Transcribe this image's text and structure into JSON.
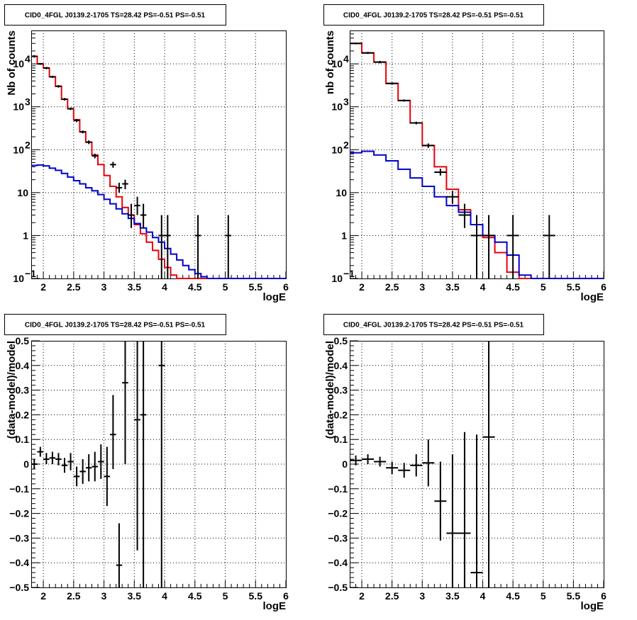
{
  "chart_data": [
    {
      "type": "histogram",
      "title": "CID0_4FGL J0139.2-1705 TS=28.42 PS=-0.51 PS=-0.51",
      "xlabel": "logE",
      "ylabel": "Nb of counts",
      "xlim": [
        1.8,
        6.0
      ],
      "ylim": [
        0.1,
        60000
      ],
      "yscale": "log",
      "grid": true,
      "xticks": [
        "2",
        "2.5",
        "3",
        "3.5",
        "4",
        "4.5",
        "5",
        "5.5",
        "6"
      ],
      "yticks": [
        {
          "v": 0.1,
          "label": "10",
          "exp": "−1"
        },
        {
          "v": 1,
          "label": "1",
          "exp": ""
        },
        {
          "v": 10,
          "label": "10",
          "exp": ""
        },
        {
          "v": 100,
          "label": "10",
          "exp": "2"
        },
        {
          "v": 1000,
          "label": "10",
          "exp": "3"
        },
        {
          "v": 10000,
          "label": "10",
          "exp": "4"
        }
      ],
      "bin_width": 0.1,
      "bins_start": 1.8,
      "series": [
        {
          "color": "#e8000b",
          "role": "total-model",
          "values": [
            15000,
            10000,
            8000,
            5000,
            3000,
            1500,
            900,
            500,
            260,
            150,
            75,
            45,
            25,
            14,
            8,
            4.5,
            3,
            1.8,
            1.1,
            0.7,
            0.45,
            0.28,
            0.18,
            0.12,
            0.1,
            0.1,
            0.1,
            0.1,
            0.1,
            0.1,
            0.1,
            0.1,
            0.1,
            0.1,
            0.1,
            0.1,
            0.1,
            0.1,
            0.1,
            0.1,
            0.1,
            0.1
          ]
        },
        {
          "color": "#0000cc",
          "role": "background-model",
          "values": [
            43,
            44,
            42,
            37,
            33,
            28,
            23,
            19,
            16,
            13,
            11,
            9,
            7,
            5.5,
            4.2,
            3.2,
            2.5,
            1.9,
            1.5,
            1.2,
            0.9,
            0.7,
            0.5,
            0.37,
            0.27,
            0.2,
            0.16,
            0.13,
            0.11,
            0.1,
            0.1,
            0.1,
            0.1,
            0.1,
            0.1,
            0.1,
            0.1,
            0.1,
            0.1,
            0.1,
            0.1,
            0.1
          ]
        }
      ],
      "points": [
        {
          "x": 1.85,
          "y": 15000,
          "lo": 14000,
          "hi": 16000
        },
        {
          "x": 1.95,
          "y": 10000,
          "lo": 9500,
          "hi": 10500
        },
        {
          "x": 2.05,
          "y": 8000,
          "lo": 7500,
          "hi": 8500
        },
        {
          "x": 2.15,
          "y": 5000,
          "lo": 4700,
          "hi": 5300
        },
        {
          "x": 2.25,
          "y": 3000,
          "lo": 2800,
          "hi": 3200
        },
        {
          "x": 2.35,
          "y": 1500,
          "lo": 1400,
          "hi": 1600
        },
        {
          "x": 2.45,
          "y": 900,
          "lo": 840,
          "hi": 960
        },
        {
          "x": 2.55,
          "y": 480,
          "lo": 440,
          "hi": 520
        },
        {
          "x": 2.65,
          "y": 260,
          "lo": 240,
          "hi": 280
        },
        {
          "x": 2.75,
          "y": 150,
          "lo": 135,
          "hi": 165
        },
        {
          "x": 2.85,
          "y": 72,
          "lo": 63,
          "hi": 81
        },
        {
          "x": 3.15,
          "y": 45,
          "lo": 38,
          "hi": 52
        },
        {
          "x": 3.25,
          "y": 13,
          "lo": 10,
          "hi": 17
        },
        {
          "x": 3.35,
          "y": 16,
          "lo": 12,
          "hi": 20
        },
        {
          "x": 3.45,
          "y": 3,
          "lo": 1.5,
          "hi": 5.5
        },
        {
          "x": 3.55,
          "y": 5,
          "lo": 3,
          "hi": 8
        },
        {
          "x": 3.65,
          "y": 3,
          "lo": 1.5,
          "hi": 5.5
        },
        {
          "x": 3.95,
          "y": 1,
          "lo": 0.1,
          "hi": 3
        },
        {
          "x": 4.05,
          "y": 1,
          "lo": 0.1,
          "hi": 3
        },
        {
          "x": 4.55,
          "y": 1,
          "lo": 0.1,
          "hi": 3
        },
        {
          "x": 5.05,
          "y": 1,
          "lo": 0.1,
          "hi": 3
        }
      ]
    },
    {
      "type": "histogram",
      "title": "CID0_4FGL J0139.2-1705 TS=28.42 PS=-0.51 PS=-0.51",
      "xlabel": "logE",
      "ylabel": "nb of counts",
      "xlim": [
        1.8,
        6.0
      ],
      "ylim": [
        0.1,
        60000
      ],
      "yscale": "log",
      "grid": true,
      "xticks": [
        "2",
        "2.5",
        "3",
        "3.5",
        "4",
        "4.5",
        "5",
        "5.5",
        "6"
      ],
      "yticks": [
        {
          "v": 0.1,
          "label": "10",
          "exp": "−1"
        },
        {
          "v": 1,
          "label": "1",
          "exp": ""
        },
        {
          "v": 10,
          "label": "10",
          "exp": ""
        },
        {
          "v": 100,
          "label": "10",
          "exp": "2"
        },
        {
          "v": 1000,
          "label": "10",
          "exp": "3"
        },
        {
          "v": 10000,
          "label": "10",
          "exp": "4"
        }
      ],
      "bin_width": 0.2,
      "bins_start": 1.8,
      "series": [
        {
          "color": "#e8000b",
          "role": "total-model",
          "values": [
            30000,
            18000,
            11000,
            3500,
            1400,
            420,
            125,
            40,
            12,
            4,
            1.8,
            0.9,
            0.4,
            0.14,
            0.1,
            0.1,
            0.1,
            0.1,
            0.1,
            0.1,
            0.1
          ]
        },
        {
          "color": "#0000cc",
          "role": "background-model",
          "values": [
            85,
            92,
            75,
            55,
            35,
            22,
            14,
            8,
            5,
            3.5,
            1.8,
            1,
            0.7,
            0.35,
            0.12,
            0.1,
            0.1,
            0.1,
            0.1,
            0.1,
            0.1
          ]
        }
      ],
      "points": [
        {
          "x": 1.9,
          "y": 30000,
          "lo": 28500,
          "hi": 31500
        },
        {
          "x": 2.1,
          "y": 18000,
          "lo": 17000,
          "hi": 19000
        },
        {
          "x": 2.3,
          "y": 11000,
          "lo": 10300,
          "hi": 11700
        },
        {
          "x": 2.5,
          "y": 3500,
          "lo": 3300,
          "hi": 3700
        },
        {
          "x": 2.7,
          "y": 1400,
          "lo": 1320,
          "hi": 1480
        },
        {
          "x": 2.9,
          "y": 420,
          "lo": 390,
          "hi": 450
        },
        {
          "x": 3.1,
          "y": 125,
          "lo": 110,
          "hi": 140
        },
        {
          "x": 3.3,
          "y": 30,
          "lo": 25,
          "hi": 36
        },
        {
          "x": 3.5,
          "y": 8,
          "lo": 5.5,
          "hi": 11
        },
        {
          "x": 3.7,
          "y": 3,
          "lo": 1.5,
          "hi": 5.5
        },
        {
          "x": 3.9,
          "y": 1,
          "lo": 0.1,
          "hi": 3
        },
        {
          "x": 4.1,
          "y": 1,
          "lo": 0.1,
          "hi": 3
        },
        {
          "x": 4.5,
          "y": 1,
          "lo": 0.1,
          "hi": 3
        },
        {
          "x": 5.1,
          "y": 1,
          "lo": 0.1,
          "hi": 3
        }
      ]
    },
    {
      "type": "scatter",
      "title": "CID0_4FGL J0139.2-1705 TS=28.42 PS=-0.51 PS=-0.51",
      "xlabel": "logE",
      "ylabel": "(data-model)/model",
      "xlim": [
        1.8,
        6.0
      ],
      "ylim": [
        -0.5,
        0.5
      ],
      "yscale": "linear",
      "grid": true,
      "xticks": [
        "2",
        "2.5",
        "3",
        "3.5",
        "4",
        "4.5",
        "5",
        "5.5",
        "6"
      ],
      "yticks": [
        "−0.5",
        "−0.4",
        "−0.3",
        "−0.2",
        "−0.1",
        "0",
        "0.1",
        "0.2",
        "0.3",
        "0.4",
        "0.5"
      ],
      "xerr": 0.05,
      "points": [
        {
          "x": 1.85,
          "y": 0,
          "lo": -0.02,
          "hi": 0.02
        },
        {
          "x": 1.95,
          "y": 0.05,
          "lo": 0.03,
          "hi": 0.07
        },
        {
          "x": 2.05,
          "y": 0.02,
          "lo": 0,
          "hi": 0.045
        },
        {
          "x": 2.15,
          "y": 0.025,
          "lo": 0,
          "hi": 0.05
        },
        {
          "x": 2.25,
          "y": 0.02,
          "lo": -0.005,
          "hi": 0.045
        },
        {
          "x": 2.35,
          "y": -0.005,
          "lo": -0.035,
          "hi": 0.025
        },
        {
          "x": 2.45,
          "y": 0.01,
          "lo": -0.025,
          "hi": 0.045
        },
        {
          "x": 2.55,
          "y": -0.05,
          "lo": -0.09,
          "hi": -0.01
        },
        {
          "x": 2.65,
          "y": -0.03,
          "lo": -0.08,
          "hi": 0.02
        },
        {
          "x": 2.75,
          "y": -0.015,
          "lo": -0.07,
          "hi": 0.04
        },
        {
          "x": 2.85,
          "y": -0.01,
          "lo": -0.07,
          "hi": 0.05
        },
        {
          "x": 2.95,
          "y": 0.01,
          "lo": -0.06,
          "hi": 0.08
        },
        {
          "x": 3.05,
          "y": -0.05,
          "lo": -0.17,
          "hi": 0.07
        },
        {
          "x": 3.15,
          "y": 0.12,
          "lo": -0.02,
          "hi": 0.28
        },
        {
          "x": 3.25,
          "y": -0.41,
          "lo": -0.5,
          "hi": -0.24
        },
        {
          "x": 3.35,
          "y": 0.33,
          "lo": 0,
          "hi": 0.5
        },
        {
          "x": 3.55,
          "y": 0.18,
          "lo": -0.35,
          "hi": 0.5
        },
        {
          "x": 3.65,
          "y": 0.2,
          "lo": -0.5,
          "hi": 0.5
        },
        {
          "x": 3.95,
          "y": 0.4,
          "lo": -0.5,
          "hi": 0.5
        }
      ]
    },
    {
      "type": "scatter",
      "title": "CID0_4FGL J0139.2-1705 TS=28.42 PS=-0.51 PS=-0.51",
      "xlabel": "logE",
      "ylabel": "(data-model)/model",
      "xlim": [
        1.8,
        6.0
      ],
      "ylim": [
        -0.5,
        0.5
      ],
      "yscale": "linear",
      "grid": true,
      "xticks": [
        "2",
        "2.5",
        "3",
        "3.5",
        "4",
        "4.5",
        "5",
        "5.5",
        "6"
      ],
      "yticks": [
        "−0.5",
        "−0.4",
        "−0.3",
        "−0.2",
        "−0.1",
        "0",
        "0.1",
        "0.2",
        "0.3",
        "0.4",
        "0.5"
      ],
      "xerr": 0.1,
      "points": [
        {
          "x": 1.9,
          "y": 0.015,
          "lo": -0.005,
          "hi": 0.035
        },
        {
          "x": 2.1,
          "y": 0.02,
          "lo": 0,
          "hi": 0.04
        },
        {
          "x": 2.3,
          "y": 0.01,
          "lo": -0.01,
          "hi": 0.03
        },
        {
          "x": 2.5,
          "y": -0.015,
          "lo": -0.04,
          "hi": 0.01
        },
        {
          "x": 2.7,
          "y": -0.025,
          "lo": -0.055,
          "hi": 0.005
        },
        {
          "x": 2.9,
          "y": -0.005,
          "lo": -0.05,
          "hi": 0.04
        },
        {
          "x": 3.1,
          "y": 0.005,
          "lo": -0.09,
          "hi": 0.1
        },
        {
          "x": 3.3,
          "y": -0.15,
          "lo": -0.31,
          "hi": 0.01
        },
        {
          "x": 3.5,
          "y": -0.28,
          "lo": -0.5,
          "hi": 0.04
        },
        {
          "x": 3.7,
          "y": -0.28,
          "lo": -0.5,
          "hi": 0.13
        },
        {
          "x": 3.9,
          "y": -0.44,
          "lo": -0.5,
          "hi": 0.12
        },
        {
          "x": 4.1,
          "y": 0.11,
          "lo": -0.5,
          "hi": 0.5
        }
      ]
    }
  ]
}
